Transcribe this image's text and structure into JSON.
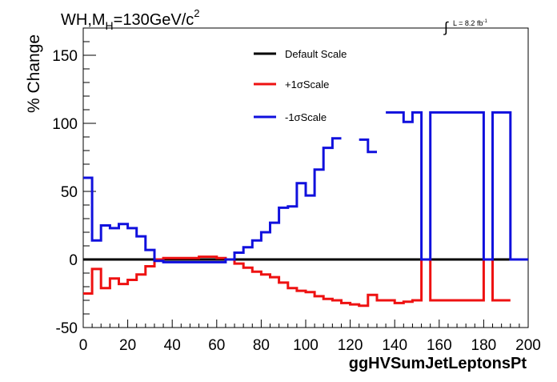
{
  "chart_data": {
    "type": "line",
    "title": "WH,M",
    "title_sub": "H",
    "title_rest": "=130GeV/c",
    "title_sup": "2",
    "lumi_integral": "∫",
    "lumi_text": "L = 8.2 fb",
    "lumi_sup": "-1",
    "xlabel": "ggHVSumJetLeptonsPt",
    "ylabel": "% Change",
    "xlim": [
      0,
      200
    ],
    "ylim": [
      -50,
      170
    ],
    "x_ticks": [
      "0",
      "20",
      "40",
      "60",
      "80",
      "100",
      "120",
      "140",
      "160",
      "180",
      "200"
    ],
    "y_ticks": [
      "-50",
      "0",
      "50",
      "100",
      "150"
    ],
    "legend": [
      {
        "label": "Default Scale",
        "color": "#000000"
      },
      {
        "label": "+1σScale",
        "color": "#ee1111"
      },
      {
        "label": "-1σScale",
        "color": "#1010dd"
      }
    ],
    "bin_width": 4,
    "series": [
      {
        "name": "Default Scale",
        "color": "#000000",
        "bin_starts": [
          0,
          4,
          8,
          12,
          16,
          20,
          24,
          28,
          32,
          36,
          40,
          44,
          48,
          52,
          56,
          60,
          64,
          68,
          72,
          76,
          80,
          84,
          88,
          92,
          96,
          100,
          104,
          108,
          112,
          116,
          120,
          124,
          128,
          132,
          136,
          140,
          144,
          148,
          152,
          156,
          160,
          164,
          168,
          172,
          176,
          180,
          184,
          188,
          192,
          196
        ],
        "values": [
          0,
          0,
          0,
          0,
          0,
          0,
          0,
          0,
          0,
          0,
          0,
          0,
          0,
          0,
          0,
          0,
          0,
          0,
          0,
          0,
          0,
          0,
          0,
          0,
          0,
          0,
          0,
          0,
          0,
          0,
          0,
          0,
          0,
          0,
          0,
          0,
          0,
          0,
          0,
          0,
          0,
          0,
          0,
          0,
          0,
          0,
          0,
          0,
          0,
          0
        ]
      },
      {
        "name": "+1σScale",
        "color": "#ee1111",
        "bin_starts": [
          0,
          4,
          8,
          12,
          16,
          20,
          24,
          28,
          32,
          36,
          40,
          44,
          48,
          52,
          56,
          60,
          64,
          68,
          72,
          76,
          80,
          84,
          88,
          92,
          96,
          100,
          104,
          108,
          112,
          116,
          120,
          124,
          128,
          132,
          136,
          140,
          144,
          148,
          152,
          156,
          160,
          164,
          168,
          172,
          176,
          180,
          184,
          188
        ],
        "values": [
          -25,
          -7,
          -21,
          -14,
          -18,
          -15,
          -11,
          -5,
          0,
          1,
          1,
          1,
          1,
          2,
          2,
          1,
          0,
          -3,
          -6,
          -9,
          -11,
          -13,
          -17,
          -21,
          -23,
          -24,
          -27,
          -29,
          -30,
          -32,
          -33,
          -34,
          -26,
          -30,
          -30,
          -32,
          -31,
          -30,
          0,
          -30,
          -30,
          -30,
          -30,
          -30,
          -30,
          0,
          -30,
          -30
        ]
      },
      {
        "name": "-1σScale",
        "color": "#1010dd",
        "bin_starts": [
          0,
          4,
          8,
          12,
          16,
          20,
          24,
          28,
          32,
          36,
          40,
          44,
          48,
          52,
          56,
          60,
          64,
          68,
          72,
          76,
          80,
          84,
          88,
          92,
          96,
          100,
          104,
          108,
          112,
          116,
          120,
          124,
          128,
          132,
          136,
          140,
          144,
          148,
          152,
          156,
          160,
          164,
          168,
          172,
          176,
          180,
          184,
          188,
          192,
          196
        ],
        "values": [
          60,
          14,
          25,
          23,
          26,
          23,
          17,
          7,
          -1,
          -2,
          -2,
          -2,
          -2,
          -2,
          -2,
          -2,
          0,
          5,
          9,
          14,
          20,
          27,
          38,
          39,
          56,
          47,
          66,
          82,
          89,
          null,
          null,
          88,
          79,
          null,
          108,
          108,
          101,
          108,
          0,
          108,
          108,
          108,
          108,
          108,
          108,
          0,
          108,
          108,
          0,
          0
        ]
      }
    ]
  }
}
